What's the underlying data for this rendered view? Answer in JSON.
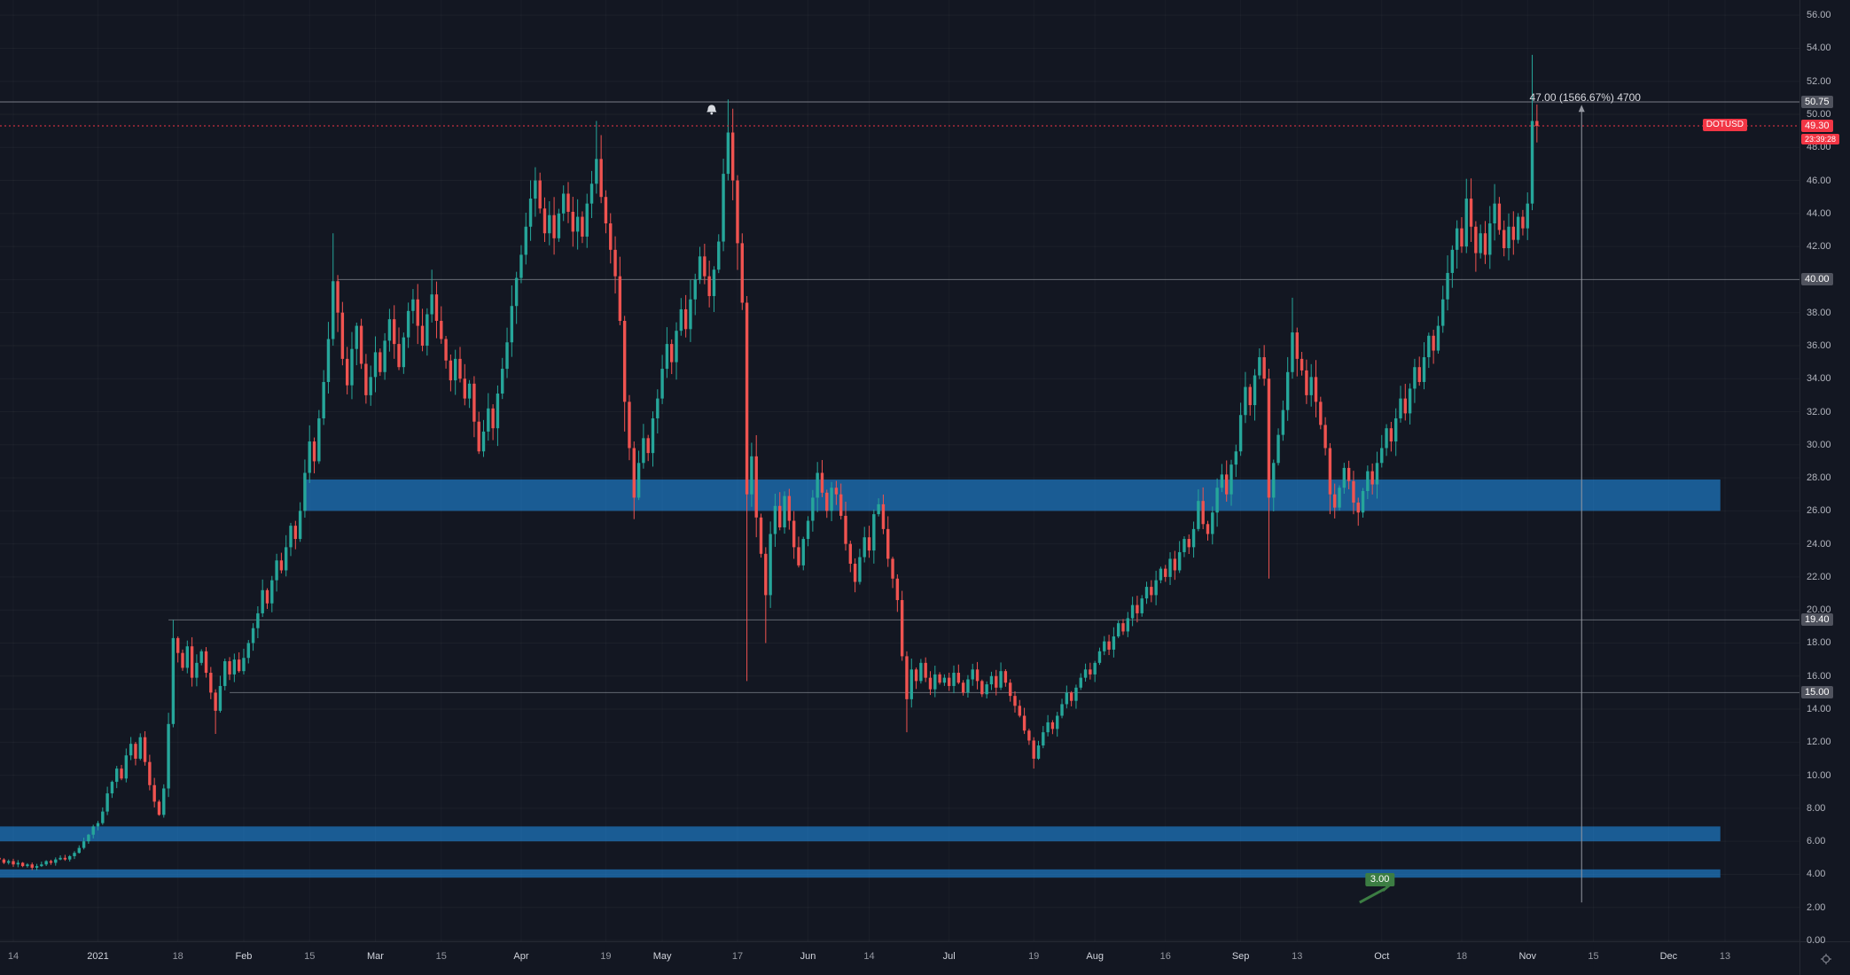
{
  "meta": {
    "symbol": "DOTUSD",
    "current_price": "49.30",
    "countdown": "23:39:28"
  },
  "colors": {
    "background": "#131722",
    "up": "#26a69a",
    "down": "#ef5350",
    "current_price": "#f23645",
    "zone": "#2196f3",
    "zone_opacity": 0.55,
    "axis_text": "#b2b5be",
    "tag_gray": "#50535e",
    "level_line": "#b2b5be",
    "alert_line": "#787b86",
    "range_tool": "#9598a1",
    "marker_green": "#3c7d43"
  },
  "price_axis": {
    "min": 0,
    "max": 56,
    "step": 2,
    "tags": [
      {
        "label": "50.75",
        "price": 50.75,
        "style": "gray"
      },
      {
        "label": "49.30",
        "price": 49.3,
        "style": "red"
      },
      {
        "label": "23:39:28",
        "price": 49.3,
        "dy": 15,
        "style": "red",
        "small": true
      },
      {
        "label": "40.00",
        "price": 40.0,
        "style": "gray"
      },
      {
        "label": "19.40",
        "price": 19.4,
        "style": "gray"
      },
      {
        "label": "15.00",
        "price": 15.0,
        "style": "gray"
      }
    ]
  },
  "time_axis": {
    "ticks": [
      {
        "label": "14",
        "i": 3
      },
      {
        "label": "2021",
        "i": 21,
        "major": true
      },
      {
        "label": "18",
        "i": 38
      },
      {
        "label": "Feb",
        "i": 52,
        "major": true
      },
      {
        "label": "15",
        "i": 66
      },
      {
        "label": "Mar",
        "i": 80,
        "major": true
      },
      {
        "label": "15",
        "i": 94
      },
      {
        "label": "Apr",
        "i": 111,
        "major": true
      },
      {
        "label": "19",
        "i": 129
      },
      {
        "label": "May",
        "i": 141,
        "major": true
      },
      {
        "label": "17",
        "i": 157
      },
      {
        "label": "Jun",
        "i": 172,
        "major": true
      },
      {
        "label": "14",
        "i": 185
      },
      {
        "label": "Jul",
        "i": 202,
        "major": true
      },
      {
        "label": "19",
        "i": 220
      },
      {
        "label": "Aug",
        "i": 233,
        "major": true
      },
      {
        "label": "16",
        "i": 248
      },
      {
        "label": "Sep",
        "i": 264,
        "major": true
      },
      {
        "label": "13",
        "i": 276
      },
      {
        "label": "Oct",
        "i": 294,
        "major": true
      },
      {
        "label": "18",
        "i": 311
      },
      {
        "label": "Nov",
        "i": 325,
        "major": true
      },
      {
        "label": "15",
        "i": 339
      },
      {
        "label": "Dec",
        "i": 355,
        "major": true
      },
      {
        "label": "13",
        "i": 367
      }
    ]
  },
  "chart_data": {
    "type": "candlestick",
    "symbol": "DOTUSD",
    "title": "",
    "ylim": [
      0,
      56
    ],
    "first_open": 5.0,
    "closes": [
      4.9,
      4.7,
      4.8,
      4.6,
      4.7,
      4.5,
      4.6,
      4.4,
      4.5,
      4.6,
      4.8,
      4.7,
      4.9,
      5.0,
      4.9,
      5.1,
      5.3,
      5.6,
      6.0,
      6.4,
      6.9,
      7.1,
      7.8,
      8.9,
      9.6,
      10.4,
      9.8,
      11.2,
      11.9,
      11.0,
      12.3,
      10.8,
      9.4,
      8.4,
      7.6,
      9.2,
      13.1,
      18.3,
      17.4,
      16.5,
      17.8,
      15.9,
      16.8,
      17.5,
      16.2,
      15.0,
      13.9,
      15.4,
      16.9,
      16.1,
      17.0,
      16.3,
      17.1,
      18.0,
      18.9,
      19.8,
      21.2,
      20.4,
      21.8,
      23.0,
      22.4,
      23.8,
      25.1,
      24.3,
      26.0,
      28.3,
      30.2,
      29.0,
      31.6,
      33.8,
      36.4,
      39.9,
      38.0,
      35.2,
      33.6,
      35.8,
      37.2,
      34.9,
      33.0,
      34.1,
      35.6,
      34.4,
      36.3,
      37.6,
      36.1,
      34.7,
      36.5,
      38.1,
      38.8,
      37.2,
      36.0,
      37.9,
      39.1,
      37.5,
      36.4,
      35.1,
      33.9,
      35.2,
      34.0,
      32.8,
      33.7,
      31.4,
      29.6,
      30.8,
      32.2,
      31.0,
      33.1,
      34.6,
      36.2,
      38.4,
      40.1,
      41.5,
      43.2,
      44.9,
      46.0,
      44.3,
      42.8,
      43.9,
      42.5,
      44.0,
      45.2,
      44.1,
      42.9,
      43.8,
      42.6,
      44.6,
      45.8,
      47.3,
      45.0,
      43.4,
      41.8,
      40.2,
      37.5,
      32.6,
      29.8,
      26.8,
      28.9,
      30.4,
      29.5,
      31.6,
      32.8,
      34.6,
      36.1,
      35.0,
      36.9,
      38.2,
      37.0,
      38.8,
      40.0,
      41.4,
      40.2,
      39.0,
      40.6,
      42.3,
      46.4,
      48.9,
      46.0,
      42.2,
      38.6,
      27.0,
      29.3,
      25.6,
      23.4,
      20.9,
      24.6,
      26.3,
      25.0,
      26.9,
      25.4,
      23.8,
      22.7,
      24.3,
      25.4,
      26.8,
      28.3,
      27.1,
      26.0,
      27.4,
      27.0,
      25.7,
      24.0,
      22.8,
      21.7,
      23.2,
      24.4,
      23.6,
      25.8,
      26.4,
      24.9,
      23.1,
      21.9,
      20.6,
      17.2,
      14.6,
      16.4,
      15.7,
      16.8,
      15.9,
      15.2,
      16.1,
      15.6,
      15.9,
      15.4,
      16.2,
      15.6,
      15.0,
      15.8,
      16.4,
      15.7,
      14.9,
      15.5,
      16.0,
      15.3,
      16.3,
      15.6,
      14.8,
      14.2,
      13.6,
      12.7,
      12.1,
      11.0,
      11.8,
      12.6,
      13.2,
      12.8,
      13.6,
      14.3,
      15.0,
      14.5,
      15.3,
      15.9,
      16.4,
      16.1,
      16.8,
      17.5,
      18.1,
      17.6,
      18.4,
      19.2,
      18.7,
      19.5,
      20.3,
      19.8,
      20.7,
      21.4,
      20.9,
      21.8,
      22.5,
      22.0,
      23.1,
      22.4,
      23.5,
      24.3,
      23.8,
      24.9,
      26.6,
      25.2,
      24.6,
      25.9,
      27.4,
      28.2,
      27.0,
      28.8,
      29.6,
      31.8,
      33.5,
      32.4,
      34.2,
      35.3,
      34.0,
      26.8,
      28.9,
      30.6,
      32.1,
      34.4,
      36.8,
      35.2,
      34.5,
      33.0,
      34.1,
      32.6,
      31.2,
      29.8,
      27.0,
      26.2,
      27.4,
      28.6,
      27.8,
      26.5,
      25.9,
      27.2,
      28.4,
      27.6,
      28.9,
      29.8,
      31.0,
      30.2,
      31.6,
      32.8,
      31.9,
      33.4,
      34.7,
      33.8,
      35.3,
      36.6,
      35.7,
      37.2,
      38.8,
      40.4,
      41.8,
      43.1,
      42.0,
      44.9,
      43.2,
      41.6,
      42.8,
      41.5,
      43.4,
      44.6,
      43.0,
      41.9,
      43.2,
      42.4,
      43.8,
      43.1,
      44.6,
      49.6,
      49.3
    ],
    "ohlc_overrides": {
      "37": [
        13.1,
        19.4,
        12.9,
        18.3
      ],
      "46": [
        15.0,
        15.2,
        12.5,
        13.9
      ],
      "71": [
        36.4,
        42.8,
        36.0,
        39.9
      ],
      "92": [
        37.9,
        40.6,
        37.4,
        39.1
      ],
      "114": [
        44.9,
        46.8,
        43.8,
        46.0
      ],
      "127": [
        45.8,
        49.6,
        45.2,
        47.3
      ],
      "133": [
        37.5,
        37.8,
        30.8,
        32.6
      ],
      "135": [
        29.8,
        30.2,
        25.5,
        26.8
      ],
      "155": [
        46.4,
        50.9,
        46.0,
        48.9
      ],
      "159": [
        38.6,
        39.0,
        15.7,
        27.0
      ],
      "163": [
        23.4,
        23.8,
        18.0,
        20.9
      ],
      "193": [
        17.2,
        17.5,
        12.6,
        14.6
      ],
      "220": [
        12.1,
        12.3,
        10.4,
        11.0
      ],
      "270": [
        34.0,
        34.6,
        21.9,
        26.8
      ],
      "275": [
        34.4,
        38.9,
        34.0,
        36.8
      ],
      "283": [
        29.8,
        30.1,
        25.8,
        27.0
      ],
      "289": [
        26.5,
        26.8,
        25.1,
        25.9
      ],
      "312": [
        42.0,
        46.1,
        41.6,
        44.9
      ],
      "326": [
        44.6,
        53.6,
        44.2,
        49.6
      ],
      "327": [
        49.6,
        50.6,
        48.3,
        49.3
      ]
    },
    "levels": {
      "alert_line": 50.75,
      "current_price": 49.3,
      "rays": [
        {
          "price": 40.0,
          "start_i": 72
        },
        {
          "price": 19.4,
          "start_i": 36
        },
        {
          "price": 15.0,
          "start_i": 49
        }
      ]
    },
    "zones": [
      {
        "name": "resistance-zone",
        "price_top": 27.9,
        "price_bottom": 26.0,
        "start_i": 65,
        "end_i": 366
      },
      {
        "name": "support-zone-upper",
        "price_top": 6.9,
        "price_bottom": 6.0,
        "start_i": 0,
        "end_i": 366
      },
      {
        "name": "support-zone-lower",
        "price_top": 4.3,
        "price_bottom": 3.8,
        "start_i": 0,
        "end_i": 366
      }
    ],
    "range_tool": {
      "i": 336.5,
      "price_top": 50.2,
      "price_bottom": 2.3,
      "label": "47.00 (1566.67%) 4700"
    },
    "alert_marker": {
      "i": 151.5,
      "price": 50.3
    },
    "price_marker": {
      "label": "3.00",
      "price": 3.0,
      "i": 293.6,
      "arrow": {
        "from_i": 289.3,
        "from_price": 2.3,
        "to_i": 295.9,
        "to_price": 3.3
      }
    }
  }
}
